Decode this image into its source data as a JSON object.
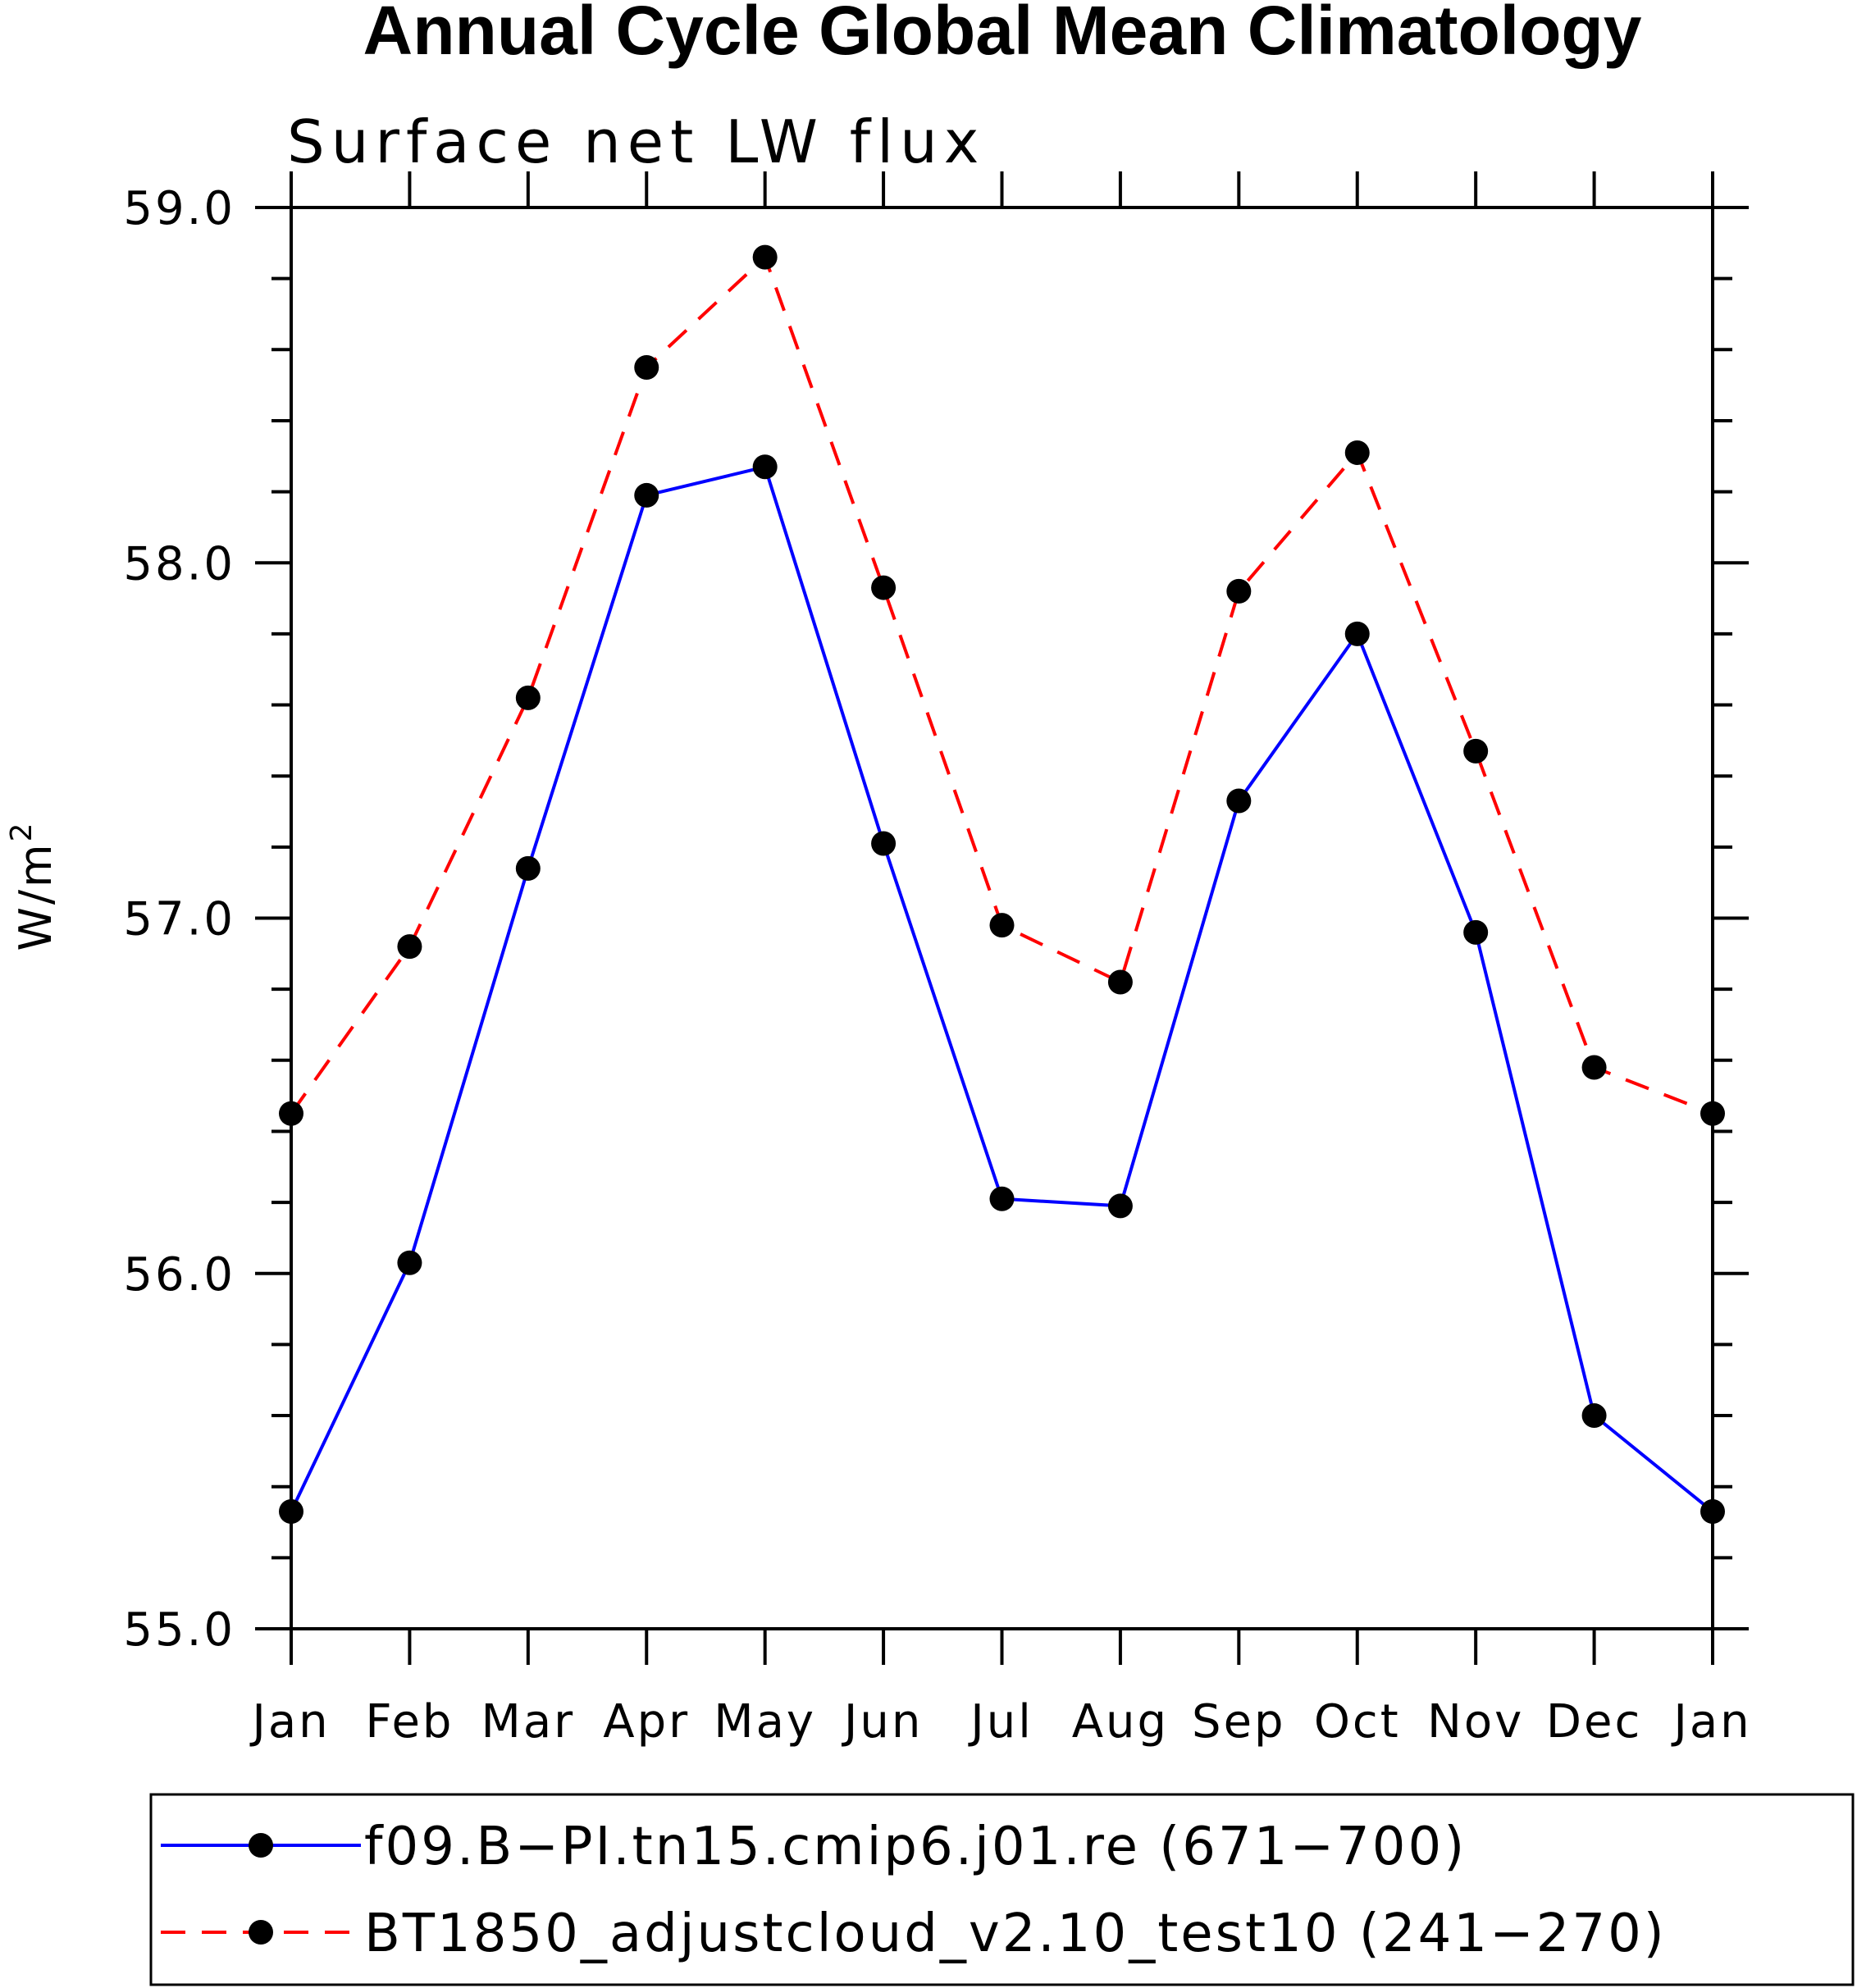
{
  "chart_data": {
    "type": "line",
    "title": "Annual Cycle Global Mean Climatology",
    "subtitle": "Surface net LW flux",
    "ylabel_base": "W/m",
    "ylabel_sup": "2",
    "categories": [
      "Jan",
      "Feb",
      "Mar",
      "Apr",
      "May",
      "Jun",
      "Jul",
      "Aug",
      "Sep",
      "Oct",
      "Nov",
      "Dec",
      "Jan"
    ],
    "ylim": [
      55.0,
      59.0
    ],
    "yticks": [
      "55.0",
      "56.0",
      "57.0",
      "58.0",
      "59.0"
    ],
    "series": [
      {
        "name": "f09.B−PI.tn15.cmip6.j01.re (671−700)",
        "color": "#0000ff",
        "dash": "solid",
        "values": [
          55.33,
          56.03,
          57.14,
          58.19,
          58.27,
          57.21,
          56.21,
          56.19,
          57.33,
          57.8,
          56.96,
          55.6,
          55.33
        ]
      },
      {
        "name": "BT1850_adjustcloud_v2.10_test10 (241−270)",
        "color": "#ff0000",
        "dash": "dashed",
        "values": [
          56.45,
          56.92,
          57.62,
          58.55,
          58.86,
          57.93,
          56.98,
          56.82,
          57.92,
          58.31,
          57.47,
          56.58,
          56.45
        ]
      }
    ],
    "marker_color": "#000000",
    "grid": false,
    "legend_position": "bottom"
  }
}
